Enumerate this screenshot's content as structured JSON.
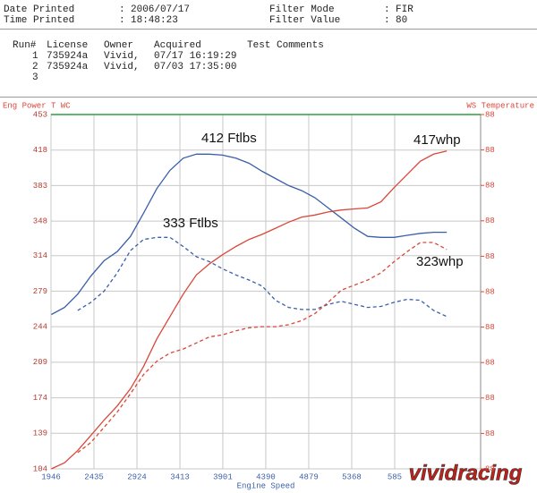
{
  "header": {
    "date_label": "Date Printed",
    "date": "2006/07/17",
    "time_label": "Time Printed",
    "time": "18:48:23",
    "filter_mode_label": "Filter Mode",
    "filter_mode": "FIR",
    "filter_value_label": "Filter Value",
    "filter_value": "80"
  },
  "runs": {
    "columns": [
      "Run#",
      "License",
      "Owner",
      "Acquired",
      "Test Comments"
    ],
    "rows": [
      [
        "1",
        "735924a",
        "Vivid,",
        "07/17 16:19:29"
      ],
      [
        "2",
        "735924a",
        "Vivid,",
        "07/03 17:35:00"
      ],
      [
        "3"
      ]
    ]
  },
  "logo": "vividracing",
  "chart_data": {
    "type": "line",
    "y_label": "Eng Power T WC",
    "y2_label": "WS Temperature",
    "x_label": "Engine Speed",
    "annotations": [
      "412 Ftlbs",
      "333 Ftlbs",
      "417whp",
      "323whp"
    ],
    "x": [
      1950,
      2100,
      2250,
      2400,
      2550,
      2700,
      2850,
      3000,
      3150,
      3300,
      3450,
      3600,
      3750,
      3900,
      4050,
      4200,
      4350,
      4500,
      4650,
      4800,
      4950,
      5100,
      5250,
      5400,
      5550,
      5700,
      5850,
      6000,
      6150,
      6300,
      6450,
      6600
    ],
    "xlim": [
      1946,
      6835
    ],
    "xticks": [
      1946,
      2435,
      2924,
      3413,
      3901,
      4390,
      4879,
      5368,
      {
        "value": 5857,
        "label": "585"
      }
    ],
    "ylim": [
      104,
      453
    ],
    "yticks": [
      104,
      139,
      174,
      209,
      244,
      279,
      314,
      348,
      383,
      418,
      453
    ],
    "y2lim": [
      88,
      88.4
    ],
    "y2ticks": [
      {
        "value": 88,
        "label": "88"
      },
      {
        "value": 88.04,
        "label": "88"
      },
      {
        "value": 88.08,
        "label": "88"
      },
      {
        "value": 88.12,
        "label": "88"
      },
      {
        "value": 88.16,
        "label": "88"
      },
      {
        "value": 88.2,
        "label": "88"
      },
      {
        "value": 88.24,
        "label": "88"
      },
      {
        "value": 88.28,
        "label": "88"
      },
      {
        "value": 88.32,
        "label": "88"
      },
      {
        "value": 88.36,
        "label": "88"
      },
      {
        "value": 88.4,
        "label": "88"
      }
    ],
    "grid": true,
    "series": [
      {
        "color": "#3a5fa8",
        "dash": false,
        "values": [
          256,
          263,
          276,
          294,
          309,
          318,
          333,
          356,
          380,
          398,
          410,
          414,
          414,
          413,
          410,
          405,
          397,
          390,
          383,
          378,
          371,
          361,
          351,
          341,
          333,
          332,
          332,
          334,
          336,
          337,
          337,
          null
        ]
      },
      {
        "color": "#d9473a",
        "dash": false,
        "values": [
          104,
          110,
          122,
          137,
          152,
          166,
          183,
          205,
          232,
          254,
          276,
          295,
          306,
          315,
          323,
          330,
          335,
          341,
          347,
          352,
          354,
          357,
          359,
          360,
          361,
          367,
          381,
          394,
          407,
          414,
          417,
          null
        ]
      },
      {
        "color": "#3a5fa8",
        "dash": true,
        "values": [
          null,
          null,
          260,
          268,
          279,
          297,
          319,
          330,
          332,
          332,
          323,
          313,
          308,
          301,
          295,
          290,
          284,
          270,
          263,
          261,
          261,
          266,
          269,
          266,
          263,
          264,
          268,
          271,
          270,
          260,
          254,
          null
        ]
      },
      {
        "color": "#d9473a",
        "dash": true,
        "values": [
          null,
          null,
          120,
          130,
          145,
          160,
          178,
          197,
          210,
          218,
          222,
          228,
          234,
          236,
          240,
          243,
          244,
          244,
          246,
          250,
          257,
          268,
          280,
          285,
          290,
          297,
          308,
          318,
          327,
          327,
          320,
          null
        ]
      }
    ]
  }
}
